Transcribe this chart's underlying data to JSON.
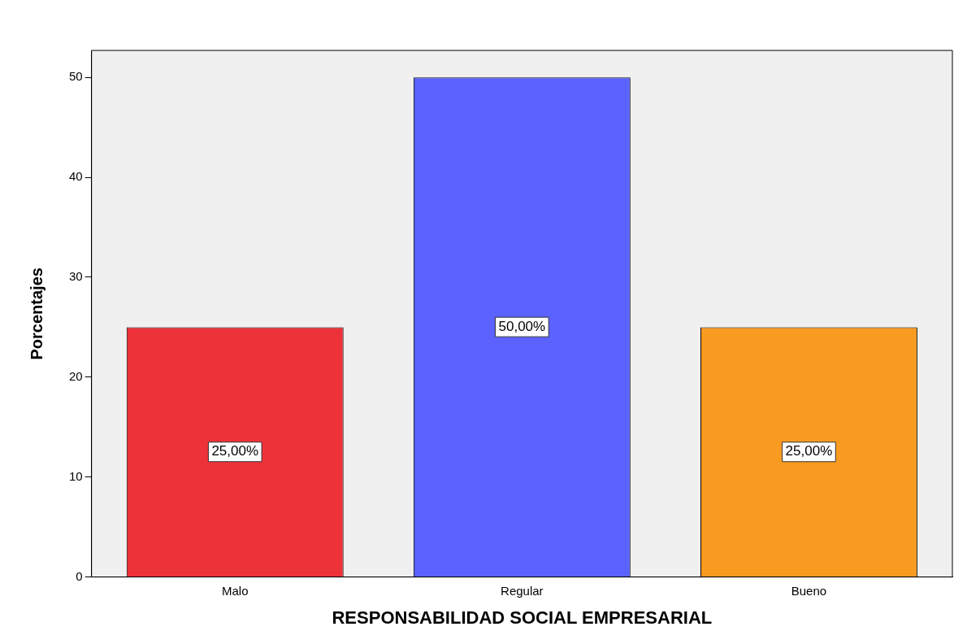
{
  "chart_data": {
    "type": "bar",
    "xlabel": "RESPONSABILIDAD SOCIAL EMPRESARIAL",
    "ylabel": "Porcentajes",
    "categories": [
      "Malo",
      "Regular",
      "Bueno"
    ],
    "values": [
      25,
      50,
      25
    ],
    "colors": [
      "#ee3239",
      "#5b62ff",
      "#f89b20"
    ],
    "value_labels": [
      "25,00%",
      "50,00%",
      "25,00%"
    ],
    "ylim": [
      0,
      52.7
    ],
    "yticks": [
      0,
      10,
      20,
      30,
      40,
      50
    ],
    "grid": false,
    "legend": false
  }
}
